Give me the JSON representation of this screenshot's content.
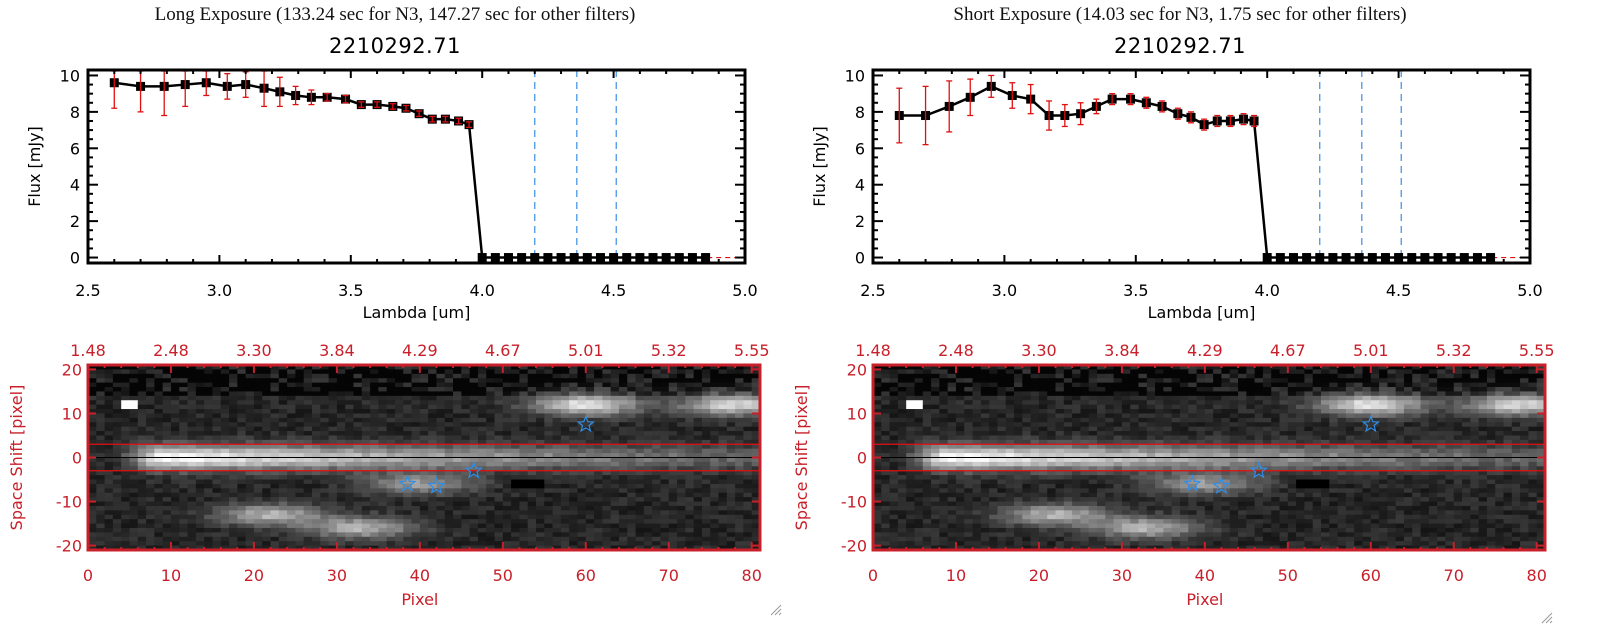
{
  "colors": {
    "frame_spectrum": "#000000",
    "errorbar": "#e01010",
    "marker": "#000000",
    "filter_lines": "#3a8ee6",
    "zero_line": "#e01010",
    "image_axis": "#c8202a",
    "star_marker": "#2f8ee8",
    "aperture_lines": "#e01010"
  },
  "panels": [
    {
      "id": "long",
      "exposure_title": "Long Exposure (133.24 sec for N3, 147.27 sec for other filters)",
      "object_id": "2210292.71"
    },
    {
      "id": "short",
      "exposure_title": "Short Exposure (14.03 sec for N3, 1.75 sec for other filters)",
      "object_id": "2210292.71"
    }
  ],
  "chart_data": [
    {
      "type": "line",
      "panel": "long",
      "title": "2210292.71",
      "xlabel": "Lambda [um]",
      "ylabel": "Flux [mJy]",
      "xlim": [
        2.5,
        5.0
      ],
      "ylim": [
        -0.3,
        10.3
      ],
      "xticks": [
        "2.5",
        "3.0",
        "3.5",
        "4.0",
        "4.5",
        "5.0"
      ],
      "yticks": [
        "0",
        "2",
        "4",
        "6",
        "8",
        "10"
      ],
      "filter_lines_x": [
        4.2,
        4.36,
        4.51
      ],
      "zero_line": 0,
      "series": [
        {
          "name": "flux",
          "x": [
            2.6,
            2.7,
            2.79,
            2.87,
            2.95,
            3.03,
            3.1,
            3.17,
            3.23,
            3.29,
            3.35,
            3.41,
            3.48,
            3.54,
            3.6,
            3.66,
            3.71,
            3.76,
            3.81,
            3.86,
            3.91,
            3.95,
            4.0,
            4.05,
            4.1,
            4.15,
            4.2,
            4.25,
            4.3,
            4.35,
            4.4,
            4.45,
            4.5,
            4.55,
            4.6,
            4.65,
            4.7,
            4.75,
            4.8,
            4.85
          ],
          "y": [
            9.6,
            9.4,
            9.4,
            9.5,
            9.6,
            9.4,
            9.5,
            9.3,
            9.1,
            8.9,
            8.8,
            8.8,
            8.7,
            8.4,
            8.4,
            8.3,
            8.2,
            7.9,
            7.6,
            7.6,
            7.5,
            7.3,
            0,
            0,
            0,
            0,
            0,
            0,
            0,
            0,
            0,
            0,
            0,
            0,
            0,
            0,
            0,
            0,
            0,
            0
          ],
          "yerr": [
            1.4,
            1.4,
            1.6,
            1.2,
            0.7,
            0.7,
            0.7,
            1.0,
            0.8,
            0.5,
            0.4,
            0.2,
            0.2,
            0.15,
            0.15,
            0.15,
            0.15,
            0.15,
            0.15,
            0.15,
            0.15,
            0.15,
            0,
            0,
            0,
            0,
            0,
            0,
            0,
            0,
            0,
            0,
            0,
            0,
            0,
            0,
            0,
            0,
            0,
            0
          ]
        }
      ]
    },
    {
      "type": "line",
      "panel": "short",
      "title": "2210292.71",
      "xlabel": "Lambda [um]",
      "ylabel": "Flux [mJy]",
      "xlim": [
        2.5,
        5.0
      ],
      "ylim": [
        -0.3,
        10.3
      ],
      "xticks": [
        "2.5",
        "3.0",
        "3.5",
        "4.0",
        "4.5",
        "5.0"
      ],
      "yticks": [
        "0",
        "2",
        "4",
        "6",
        "8",
        "10"
      ],
      "filter_lines_x": [
        4.2,
        4.36,
        4.51
      ],
      "zero_line": 0,
      "series": [
        {
          "name": "flux",
          "x": [
            2.6,
            2.7,
            2.79,
            2.87,
            2.95,
            3.03,
            3.1,
            3.17,
            3.23,
            3.29,
            3.35,
            3.41,
            3.48,
            3.54,
            3.6,
            3.66,
            3.71,
            3.76,
            3.81,
            3.86,
            3.91,
            3.95,
            4.0,
            4.05,
            4.1,
            4.15,
            4.2,
            4.25,
            4.3,
            4.35,
            4.4,
            4.45,
            4.5,
            4.55,
            4.6,
            4.65,
            4.7,
            4.75,
            4.8,
            4.85
          ],
          "y": [
            7.8,
            7.8,
            8.3,
            8.8,
            9.4,
            8.9,
            8.7,
            7.8,
            7.8,
            7.9,
            8.3,
            8.7,
            8.7,
            8.5,
            8.3,
            7.9,
            7.7,
            7.3,
            7.5,
            7.5,
            7.6,
            7.5,
            0,
            0,
            0,
            0,
            0,
            0,
            0,
            0,
            0,
            0,
            0,
            0,
            0,
            0,
            0,
            0,
            0,
            0
          ],
          "yerr": [
            1.5,
            1.6,
            1.4,
            1.0,
            0.6,
            0.7,
            0.8,
            0.8,
            0.6,
            0.6,
            0.4,
            0.3,
            0.3,
            0.3,
            0.3,
            0.3,
            0.3,
            0.3,
            0.3,
            0.3,
            0.3,
            0.3,
            0,
            0,
            0,
            0,
            0,
            0,
            0,
            0,
            0,
            0,
            0,
            0,
            0,
            0,
            0,
            0,
            0,
            0
          ]
        }
      ]
    },
    {
      "type": "heatmap",
      "panel": "long",
      "title": "",
      "xlabel": "Pixel",
      "ylabel": "Space Shift [pixel]",
      "xlim": [
        0,
        81
      ],
      "ylim": [
        -21,
        21
      ],
      "xticks": [
        "0",
        "10",
        "20",
        "30",
        "40",
        "50",
        "60",
        "70",
        "80"
      ],
      "yticks": [
        "-20",
        "-10",
        "0",
        "10",
        "20"
      ],
      "top_xticks_values": [
        0,
        10,
        20,
        30,
        40,
        50,
        60,
        70,
        80
      ],
      "top_xticks": [
        "1.48",
        "2.48",
        "3.30",
        "3.84",
        "4.29",
        "4.67",
        "5.01",
        "5.32",
        "5.55"
      ],
      "aperture_y": [
        3,
        -3
      ],
      "center_line_y": 0,
      "stars": [
        {
          "x": 38.5,
          "y": -6
        },
        {
          "x": 42,
          "y": -6.5
        },
        {
          "x": 46.5,
          "y": -3
        },
        {
          "x": 60,
          "y": 7.5
        }
      ],
      "sources": [
        {
          "x": 10,
          "y": 0,
          "peak": 0.95,
          "note": "main trace"
        },
        {
          "x": 60,
          "y": 12,
          "peak": 0.75
        },
        {
          "x": 78,
          "y": 12,
          "peak": 0.7
        },
        {
          "x": 22,
          "y": -13,
          "peak": 0.55
        },
        {
          "x": 33,
          "y": -16,
          "peak": 0.55
        },
        {
          "x": 40,
          "y": -6,
          "peak": 0.45
        },
        {
          "x": 5,
          "y": 12,
          "peak": 1.0
        }
      ]
    },
    {
      "type": "heatmap",
      "panel": "short",
      "title": "",
      "xlabel": "Pixel",
      "ylabel": "Space Shift [pixel]",
      "xlim": [
        0,
        81
      ],
      "ylim": [
        -21,
        21
      ],
      "xticks": [
        "0",
        "10",
        "20",
        "30",
        "40",
        "50",
        "60",
        "70",
        "80"
      ],
      "yticks": [
        "-20",
        "-10",
        "0",
        "10",
        "20"
      ],
      "top_xticks_values": [
        0,
        10,
        20,
        30,
        40,
        50,
        60,
        70,
        80
      ],
      "top_xticks": [
        "1.48",
        "2.48",
        "3.30",
        "3.84",
        "4.29",
        "4.67",
        "5.01",
        "5.32",
        "5.55"
      ],
      "aperture_y": [
        3,
        -3
      ],
      "center_line_y": 0,
      "stars": [
        {
          "x": 38.5,
          "y": -6
        },
        {
          "x": 42,
          "y": -6.5
        },
        {
          "x": 46.5,
          "y": -3
        },
        {
          "x": 60,
          "y": 7.5
        }
      ],
      "sources": [
        {
          "x": 10,
          "y": 0,
          "peak": 0.95,
          "note": "main trace"
        },
        {
          "x": 60,
          "y": 12,
          "peak": 0.75
        },
        {
          "x": 78,
          "y": 12,
          "peak": 0.7
        },
        {
          "x": 22,
          "y": -13,
          "peak": 0.55
        },
        {
          "x": 33,
          "y": -16,
          "peak": 0.55
        },
        {
          "x": 40,
          "y": -6,
          "peak": 0.45
        },
        {
          "x": 5,
          "y": 12,
          "peak": 1.0
        }
      ]
    }
  ]
}
